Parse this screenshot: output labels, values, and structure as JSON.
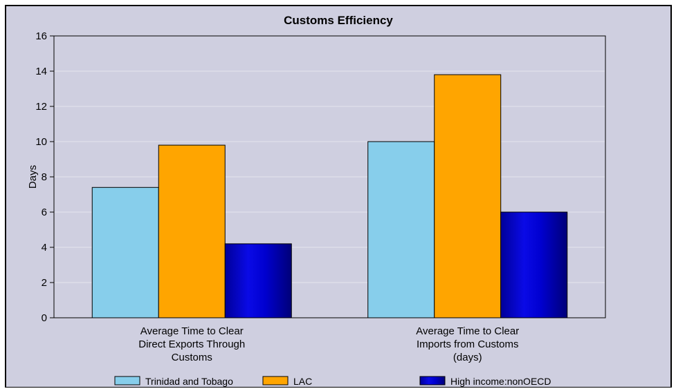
{
  "chart_data": {
    "type": "bar",
    "title": "Customs Efficiency",
    "xlabel": "",
    "ylabel": "Days",
    "ylim": [
      0,
      16
    ],
    "yticks": [
      0,
      2,
      4,
      6,
      8,
      10,
      12,
      14,
      16
    ],
    "grid": true,
    "legend_position": "bottom",
    "categories": [
      [
        "Average Time to Clear",
        "Direct Exports Through",
        "Customs"
      ],
      [
        "Average Time to Clear",
        "Imports from Customs",
        "(days)"
      ]
    ],
    "series": [
      {
        "name": "Trinidad and Tobago",
        "values": [
          7.4,
          10.0
        ],
        "color": "#87ceeb"
      },
      {
        "name": "LAC",
        "values": [
          9.8,
          13.8
        ],
        "color": "#ffa500"
      },
      {
        "name": "High income:nonOECD",
        "values": [
          4.2,
          6.0
        ],
        "color": "#0000cd"
      }
    ],
    "colors": {
      "background": "#cfcfe0",
      "plot_background": "#cfcfe0",
      "gridline": "#e4e4ee",
      "axis": "#000000"
    }
  }
}
